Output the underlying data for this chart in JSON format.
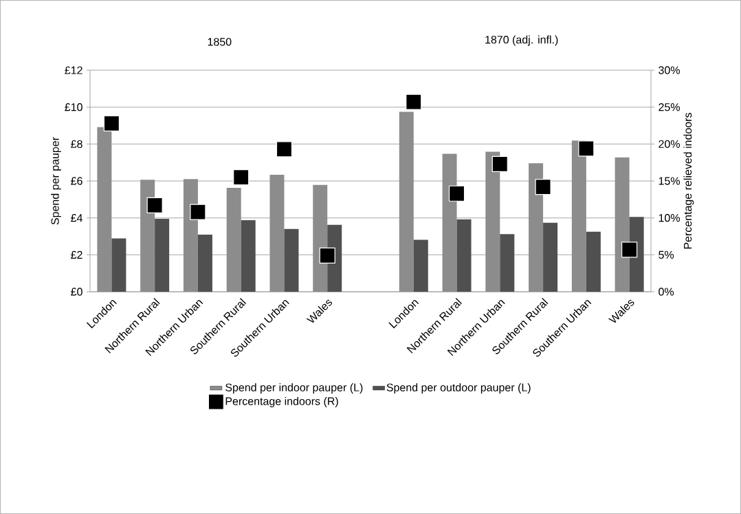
{
  "chart_data": {
    "type": "bar",
    "annotations": [
      "1850",
      "1870 (adj. infl.)"
    ],
    "ylabel": "Spend per pauper",
    "y2label": "Percentage relieved indoors",
    "categories": [
      "London",
      "Northern Rural",
      "Northern Urban",
      "Southern Rural",
      "Southern Urban",
      "Wales",
      null,
      "London",
      "Northern Rural",
      "Northern Urban",
      "Southern Rural",
      "Southern Urban",
      "Wales"
    ],
    "series": [
      {
        "name": "Spend per indoor pauper (L)",
        "color": "#8c8c8c",
        "values": [
          8.92,
          6.07,
          6.1,
          5.63,
          6.34,
          5.79,
          null,
          9.75,
          7.47,
          7.58,
          6.96,
          8.19,
          7.28
        ]
      },
      {
        "name": "Spend per outdoor pauper (L)",
        "color": "#505050",
        "values": [
          2.89,
          3.95,
          3.09,
          3.88,
          3.4,
          3.62,
          null,
          2.81,
          3.92,
          3.12,
          3.74,
          3.25,
          4.05
        ]
      },
      {
        "name": "Percentage indoors (R)",
        "color": "#000000",
        "type": "scatter",
        "axis": "y2",
        "marker": "square",
        "values": [
          22.8,
          11.7,
          10.8,
          15.5,
          19.3,
          4.9,
          null,
          25.7,
          13.3,
          17.3,
          14.2,
          19.4,
          5.7
        ]
      }
    ],
    "ylim": [
      0,
      12
    ],
    "yticks": [
      {
        "value": 0,
        "label": "£0"
      },
      {
        "value": 2,
        "label": "£2"
      },
      {
        "value": 4,
        "label": "£4"
      },
      {
        "value": 6,
        "label": "£6"
      },
      {
        "value": 8,
        "label": "£8"
      },
      {
        "value": 10,
        "label": "£10"
      },
      {
        "value": 12,
        "label": "£12"
      }
    ],
    "y2lim": [
      0,
      30
    ],
    "y2ticks": [
      {
        "value": 0,
        "label": "0%"
      },
      {
        "value": 5,
        "label": "5%"
      },
      {
        "value": 10,
        "label": "10%"
      },
      {
        "value": 15,
        "label": "15%"
      },
      {
        "value": 20,
        "label": "20%"
      },
      {
        "value": 25,
        "label": "25%"
      },
      {
        "value": 30,
        "label": "30%"
      }
    ],
    "grid": "y",
    "legend": "bottom"
  }
}
